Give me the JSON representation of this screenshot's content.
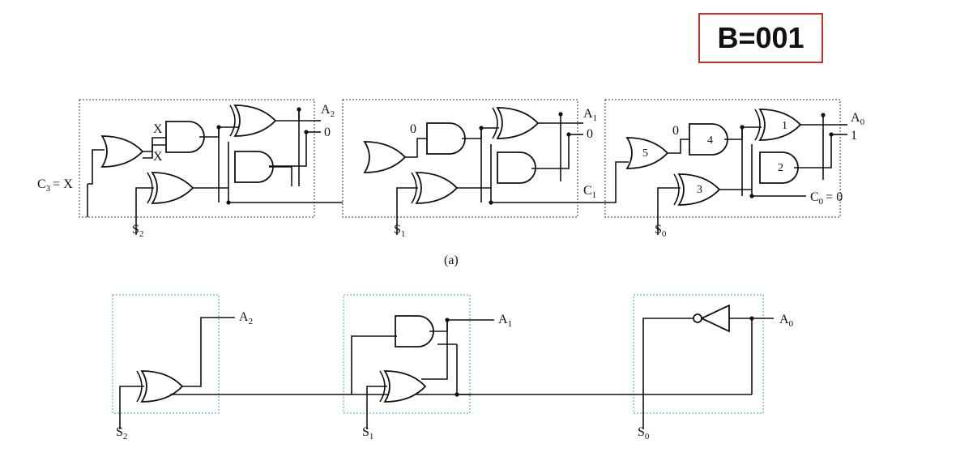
{
  "title": "B=001",
  "top": {
    "caption": "(a)",
    "carry_in": "C",
    "carry_in_sub": "3",
    "carry_in_value": "= X",
    "intermediate_carry": "C",
    "intermediate_carry_sub": "1",
    "carry_out": "C",
    "carry_out_sub": "0",
    "carry_out_value": "= 0",
    "stage2": {
      "select": "S",
      "select_sub": "2",
      "out1": "A",
      "out1_sub": "2",
      "out2": "0",
      "in_top": "X",
      "in_bot": "X"
    },
    "stage1": {
      "select": "S",
      "select_sub": "1",
      "out1": "A",
      "out1_sub": "1",
      "out2": "0",
      "in_top": "0"
    },
    "stage0": {
      "select": "S",
      "select_sub": "0",
      "out1": "A",
      "out1_sub": "0",
      "out2": "1",
      "in_top": "0",
      "gate_labels": [
        "1",
        "2",
        "3",
        "4",
        "5"
      ]
    }
  },
  "bottom": {
    "stage2": {
      "select": "S",
      "select_sub": "2",
      "out": "A",
      "out_sub": "2"
    },
    "stage1": {
      "select": "S",
      "select_sub": "1",
      "out": "A",
      "out_sub": "1"
    },
    "stage0": {
      "select": "S",
      "select_sub": "0",
      "out": "A",
      "out_sub": "0"
    }
  }
}
